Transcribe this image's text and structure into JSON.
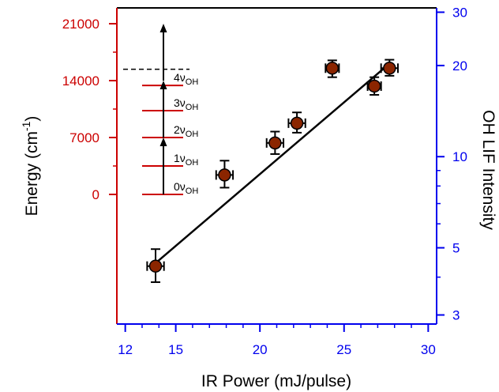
{
  "chart_data": {
    "type": "scatter",
    "title": "",
    "xlabel": "IR Power (mJ/pulse)",
    "ylabel_left": "Energy (cm",
    "ylabel_left_sup": "-1",
    "ylabel_left_end": ")",
    "ylabel_right": "OH LIF Intensity",
    "xlim": [
      11.5,
      30.5
    ],
    "x_ticks": [
      12,
      15,
      20,
      25,
      30
    ],
    "y_right_scale": "log",
    "y_right_lim": [
      2.8,
      31
    ],
    "y_right_ticks": [
      3,
      5,
      10,
      20,
      30
    ],
    "y_left_ticks": [
      0,
      7000,
      14000,
      21000
    ],
    "left_axis_color": "#cc0000",
    "right_axis_color": "#0000ee",
    "bottom_axis_color": "#0000ee",
    "marker_color": "#8b2500",
    "points": [
      {
        "x": 13.8,
        "y": 4.35,
        "xerr": 0.5,
        "y_lo": 3.85,
        "y_hi": 4.95
      },
      {
        "x": 17.9,
        "y": 8.7,
        "xerr": 0.5,
        "y_lo": 7.9,
        "y_hi": 9.7
      },
      {
        "x": 20.9,
        "y": 11.1,
        "xerr": 0.5,
        "y_lo": 10.2,
        "y_hi": 12.1
      },
      {
        "x": 22.2,
        "y": 12.9,
        "xerr": 0.5,
        "y_lo": 12.0,
        "y_hi": 14.0
      },
      {
        "x": 24.3,
        "y": 19.6,
        "xerr": 0.4,
        "y_lo": 18.3,
        "y_hi": 20.8
      },
      {
        "x": 26.8,
        "y": 17.1,
        "xerr": 0.4,
        "y_lo": 16.0,
        "y_hi": 18.3
      },
      {
        "x": 27.7,
        "y": 19.6,
        "xerr": 0.5,
        "y_lo": 18.5,
        "y_hi": 20.9
      }
    ],
    "fit_line": {
      "x": [
        13.8,
        27.7
      ],
      "y": [
        4.45,
        20.3
      ]
    },
    "energy_levels": {
      "values": [
        0,
        3500,
        7000,
        10300,
        13400
      ],
      "labels": [
        {
          "base": "0ν",
          "sub": "OH"
        },
        {
          "base": "1ν",
          "sub": "OH"
        },
        {
          "base": "2ν",
          "sub": "OH"
        },
        {
          "base": "3ν",
          "sub": "OH"
        },
        {
          "base": "4ν",
          "sub": "OH"
        }
      ],
      "dashed_level": 15400,
      "arrows": [
        {
          "from": 0,
          "to": 7000
        },
        {
          "from": 7000,
          "to": 14000
        },
        {
          "from": 14000,
          "to": 21000
        }
      ]
    }
  }
}
